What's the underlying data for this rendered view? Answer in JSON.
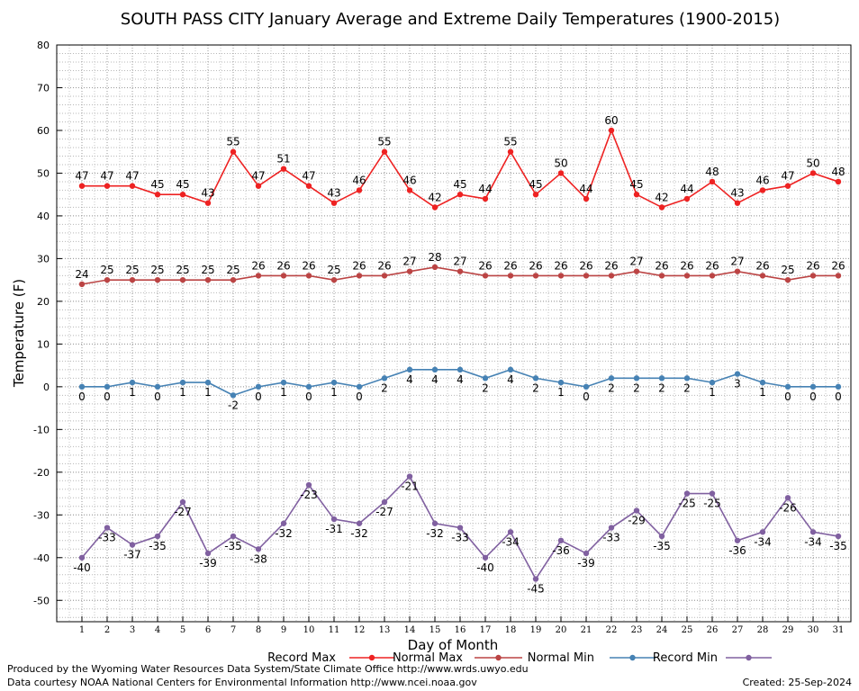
{
  "chart_data": {
    "type": "line",
    "title": "SOUTH PASS CITY January Average and Extreme Daily Temperatures (1900-2015)",
    "xlabel": "Day of Month",
    "ylabel": "Temperature (F)",
    "ylim": [
      -55,
      80
    ],
    "yticks": [
      80,
      70,
      60,
      50,
      40,
      30,
      20,
      10,
      0,
      -10,
      -20,
      -30,
      -40,
      -50
    ],
    "x": [
      1,
      2,
      3,
      4,
      5,
      6,
      7,
      8,
      9,
      10,
      11,
      12,
      13,
      14,
      15,
      16,
      17,
      18,
      19,
      20,
      21,
      22,
      23,
      24,
      25,
      26,
      27,
      28,
      29,
      30,
      31
    ],
    "grid": true,
    "legend_position": "bottom",
    "series": [
      {
        "name": "Record Max",
        "color": "#ee2222",
        "values": [
          47,
          47,
          47,
          45,
          45,
          43,
          55,
          47,
          51,
          47,
          43,
          46,
          55,
          46,
          42,
          45,
          44,
          55,
          45,
          50,
          44,
          60,
          45,
          42,
          44,
          48,
          43,
          46,
          47,
          50,
          48
        ]
      },
      {
        "name": "Normal Max",
        "color": "#bb4444",
        "values": [
          24,
          25,
          25,
          25,
          25,
          25,
          25,
          26,
          26,
          26,
          25,
          26,
          26,
          27,
          28,
          27,
          26,
          26,
          26,
          26,
          26,
          26,
          27,
          26,
          26,
          26,
          27,
          26,
          25,
          26,
          26
        ]
      },
      {
        "name": "Normal Min",
        "color": "#4682b4",
        "values": [
          0,
          0,
          1,
          0,
          1,
          1,
          -2,
          0,
          1,
          0,
          1,
          0,
          2,
          4,
          4,
          4,
          2,
          4,
          2,
          1,
          0,
          2,
          2,
          2,
          2,
          1,
          3,
          1,
          0,
          0,
          0
        ]
      },
      {
        "name": "Record Min",
        "color": "#8060a0",
        "values": [
          -40,
          -33,
          -37,
          -35,
          -27,
          -39,
          -35,
          -38,
          -32,
          -23,
          -31,
          -32,
          -27,
          -21,
          -32,
          -33,
          -40,
          -34,
          -45,
          -36,
          -39,
          -33,
          -29,
          -35,
          -25,
          -25,
          -36,
          -34,
          -26,
          -34,
          -35
        ]
      }
    ]
  },
  "footer": {
    "produced_by": "Produced by the Wyoming Water Resources Data System/State Climate Office http://www.wrds.uwyo.edu",
    "courtesy": "Data courtesy NOAA National Centers for Environmental Information http://www.ncei.noaa.gov",
    "created": "Created:  25-Sep-2024"
  }
}
